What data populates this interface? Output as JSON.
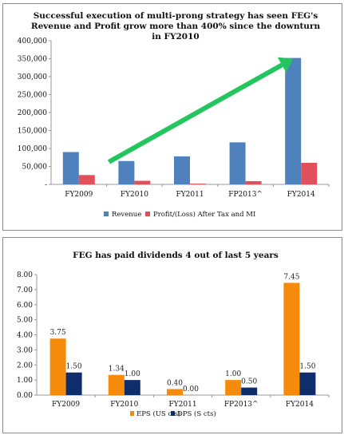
{
  "chart_data": [
    {
      "type": "bar",
      "title_lines": [
        "Successful execution of multi-prong strategy has seen FEG's",
        "Revenue and Profit grow more than 400% since the downturn",
        "in FY2010"
      ],
      "categories": [
        "FY2009",
        "FY2010",
        "FY2011",
        "FP2013^",
        "FY2014"
      ],
      "series": [
        {
          "name": "Revenue",
          "values": [
            90000,
            65000,
            78000,
            117000,
            352000
          ],
          "color": "#4f81bd"
        },
        {
          "name": "Profit/(Loss) After Tax and MI",
          "values": [
            26000,
            10000,
            2000,
            9000,
            60000
          ],
          "color": "#e0505a"
        }
      ],
      "ylim": [
        0,
        400000
      ],
      "yticks": [
        "-",
        "50,000",
        "100,000",
        "150,000",
        "200,000",
        "250,000",
        "300,000",
        "350,000",
        "400,000"
      ],
      "legend_position": "bottom",
      "annotation": {
        "type": "arrow",
        "color": "#22c55e",
        "from_category": "FY2010",
        "to_category": "FY2014"
      },
      "grid": false
    },
    {
      "type": "bar",
      "title": "FEG has paid dividends 4 out of last 5 years",
      "categories": [
        "FY2009",
        "FY2010",
        "FY2011",
        "FP2013^",
        "FY2014"
      ],
      "series": [
        {
          "name": "EPS (US cts)",
          "values": [
            3.75,
            1.34,
            0.4,
            1.0,
            7.45
          ],
          "labels": [
            "3.75",
            "1.34",
            "0.40",
            "1.00",
            "7.45"
          ],
          "color": "#f58a0b"
        },
        {
          "name": "DPS (S cts)",
          "values": [
            1.5,
            1.0,
            0.0,
            0.5,
            1.5
          ],
          "labels": [
            "1.50",
            "1.00",
            "0.00",
            "0.50",
            "1.50"
          ],
          "color": "#0f2d6b"
        }
      ],
      "ylim": [
        0,
        8
      ],
      "yticks": [
        "0.00",
        "1.00",
        "2.00",
        "3.00",
        "4.00",
        "5.00",
        "6.00",
        "7.00",
        "8.00"
      ],
      "legend_position": "bottom",
      "grid": false
    }
  ]
}
